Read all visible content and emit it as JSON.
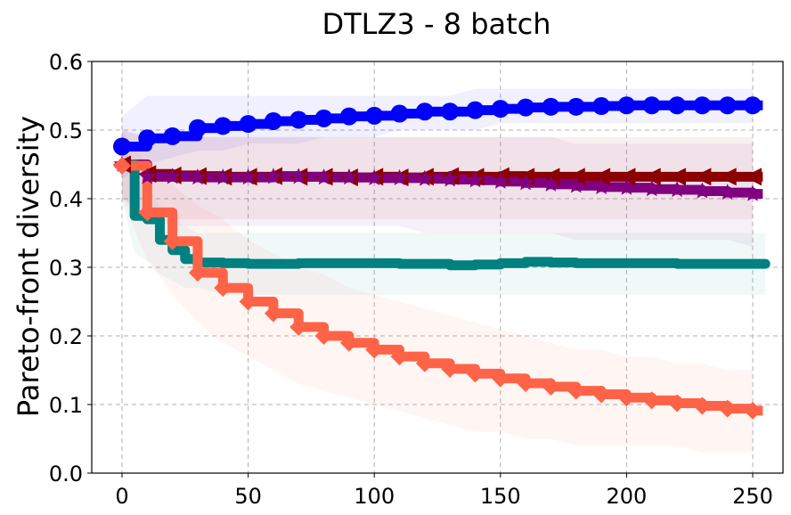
{
  "chart_data": {
    "type": "line",
    "title": "DTLZ3 - 8 batch",
    "xlabel": "",
    "ylabel": "Pareto-front diversity",
    "xlim": [
      -12,
      262
    ],
    "ylim": [
      0.0,
      0.6
    ],
    "xticks": [
      0,
      50,
      100,
      150,
      200,
      250
    ],
    "yticks": [
      0.0,
      0.1,
      0.2,
      0.3,
      0.4,
      0.5,
      0.6
    ],
    "ytick_labels": [
      "0.0",
      "0.1",
      "0.2",
      "0.3",
      "0.4",
      "0.5",
      "0.6"
    ],
    "grid": true,
    "series": [
      {
        "name": "blue",
        "color": "#0000ff",
        "marker": "circle",
        "x": [
          0,
          10,
          20,
          30,
          40,
          50,
          60,
          70,
          80,
          90,
          100,
          110,
          120,
          130,
          140,
          150,
          160,
          170,
          180,
          190,
          200,
          210,
          220,
          230,
          240,
          250
        ],
        "mean": [
          0.476,
          0.488,
          0.491,
          0.503,
          0.506,
          0.509,
          0.513,
          0.515,
          0.517,
          0.52,
          0.521,
          0.524,
          0.527,
          0.527,
          0.529,
          0.531,
          0.533,
          0.534,
          0.534,
          0.535,
          0.536,
          0.536,
          0.536,
          0.536,
          0.536,
          0.536
        ],
        "lower": [
          0.43,
          0.45,
          0.46,
          0.47,
          0.47,
          0.48,
          0.48,
          0.48,
          0.49,
          0.49,
          0.49,
          0.5,
          0.5,
          0.5,
          0.5,
          0.51,
          0.51,
          0.51,
          0.51,
          0.51,
          0.51,
          0.51,
          0.51,
          0.51,
          0.51,
          0.51
        ],
        "upper": [
          0.52,
          0.55,
          0.55,
          0.55,
          0.55,
          0.55,
          0.55,
          0.55,
          0.55,
          0.55,
          0.55,
          0.55,
          0.55,
          0.55,
          0.56,
          0.56,
          0.56,
          0.56,
          0.56,
          0.56,
          0.56,
          0.56,
          0.56,
          0.56,
          0.56,
          0.56
        ]
      },
      {
        "name": "dark red",
        "color": "#8b0000",
        "marker": "triangle-left",
        "x": [
          0,
          10,
          20,
          30,
          40,
          50,
          60,
          70,
          80,
          90,
          100,
          110,
          120,
          130,
          140,
          150,
          160,
          170,
          180,
          190,
          200,
          210,
          220,
          230,
          240,
          250
        ],
        "mean": [
          0.45,
          0.436,
          0.434,
          0.433,
          0.432,
          0.432,
          0.433,
          0.432,
          0.432,
          0.431,
          0.432,
          0.431,
          0.432,
          0.433,
          0.432,
          0.433,
          0.432,
          0.432,
          0.432,
          0.432,
          0.432,
          0.432,
          0.432,
          0.432,
          0.432,
          0.432
        ],
        "lower": [
          0.4,
          0.38,
          0.37,
          0.37,
          0.37,
          0.37,
          0.37,
          0.37,
          0.37,
          0.37,
          0.37,
          0.37,
          0.37,
          0.37,
          0.37,
          0.37,
          0.37,
          0.37,
          0.37,
          0.37,
          0.37,
          0.37,
          0.37,
          0.37,
          0.37,
          0.37
        ],
        "upper": [
          0.5,
          0.49,
          0.49,
          0.49,
          0.49,
          0.49,
          0.49,
          0.49,
          0.49,
          0.49,
          0.49,
          0.49,
          0.49,
          0.49,
          0.49,
          0.49,
          0.49,
          0.49,
          0.49,
          0.49,
          0.49,
          0.49,
          0.49,
          0.49,
          0.49,
          0.49
        ]
      },
      {
        "name": "purple",
        "color": "#800080",
        "marker": "star",
        "x": [
          0,
          10,
          20,
          30,
          40,
          50,
          60,
          70,
          80,
          90,
          100,
          110,
          120,
          130,
          140,
          150,
          160,
          170,
          180,
          190,
          200,
          210,
          220,
          230,
          240,
          250
        ],
        "mean": [
          0.45,
          0.432,
          0.432,
          0.431,
          0.431,
          0.431,
          0.432,
          0.432,
          0.431,
          0.431,
          0.43,
          0.43,
          0.429,
          0.428,
          0.427,
          0.425,
          0.423,
          0.421,
          0.419,
          0.417,
          0.416,
          0.414,
          0.413,
          0.411,
          0.409,
          0.407
        ],
        "lower": [
          0.4,
          0.37,
          0.36,
          0.36,
          0.36,
          0.36,
          0.36,
          0.36,
          0.36,
          0.36,
          0.36,
          0.36,
          0.35,
          0.35,
          0.35,
          0.35,
          0.35,
          0.35,
          0.34,
          0.34,
          0.34,
          0.34,
          0.34,
          0.34,
          0.34,
          0.33
        ],
        "upper": [
          0.5,
          0.49,
          0.49,
          0.49,
          0.49,
          0.49,
          0.49,
          0.49,
          0.49,
          0.49,
          0.49,
          0.49,
          0.49,
          0.49,
          0.49,
          0.49,
          0.49,
          0.49,
          0.48,
          0.48,
          0.48,
          0.48,
          0.48,
          0.48,
          0.48,
          0.48
        ]
      },
      {
        "name": "teal",
        "color": "#008080",
        "marker": "none",
        "x": [
          0,
          5,
          10,
          15,
          20,
          25,
          30,
          40,
          50,
          60,
          70,
          80,
          90,
          100,
          110,
          120,
          130,
          140,
          150,
          160,
          170,
          180,
          190,
          200,
          210,
          220,
          230,
          240,
          250,
          255
        ],
        "mean": [
          0.45,
          0.375,
          0.37,
          0.34,
          0.325,
          0.312,
          0.307,
          0.306,
          0.305,
          0.305,
          0.306,
          0.306,
          0.306,
          0.306,
          0.305,
          0.305,
          0.303,
          0.304,
          0.306,
          0.308,
          0.307,
          0.306,
          0.306,
          0.306,
          0.306,
          0.305,
          0.305,
          0.305,
          0.305,
          0.305
        ],
        "lower": [
          0.4,
          0.32,
          0.31,
          0.29,
          0.28,
          0.27,
          0.27,
          0.26,
          0.26,
          0.26,
          0.26,
          0.26,
          0.26,
          0.26,
          0.26,
          0.26,
          0.26,
          0.26,
          0.26,
          0.26,
          0.26,
          0.26,
          0.26,
          0.26,
          0.26,
          0.26,
          0.26,
          0.26,
          0.26,
          0.26
        ],
        "upper": [
          0.5,
          0.43,
          0.42,
          0.39,
          0.37,
          0.36,
          0.35,
          0.35,
          0.35,
          0.35,
          0.35,
          0.35,
          0.35,
          0.35,
          0.35,
          0.35,
          0.35,
          0.35,
          0.35,
          0.35,
          0.35,
          0.35,
          0.35,
          0.35,
          0.35,
          0.35,
          0.35,
          0.35,
          0.35,
          0.35
        ]
      },
      {
        "name": "tomato",
        "color": "#ff6347",
        "marker": "diamond",
        "x": [
          0,
          10,
          20,
          30,
          40,
          50,
          60,
          70,
          80,
          90,
          100,
          110,
          120,
          130,
          140,
          150,
          160,
          170,
          180,
          190,
          200,
          210,
          220,
          230,
          240,
          250
        ],
        "mean": [
          0.448,
          0.38,
          0.338,
          0.292,
          0.27,
          0.25,
          0.233,
          0.213,
          0.2,
          0.19,
          0.18,
          0.17,
          0.16,
          0.152,
          0.145,
          0.138,
          0.131,
          0.126,
          0.12,
          0.115,
          0.11,
          0.106,
          0.102,
          0.098,
          0.094,
          0.091
        ],
        "lower": [
          0.4,
          0.31,
          0.26,
          0.22,
          0.19,
          0.17,
          0.15,
          0.13,
          0.12,
          0.11,
          0.1,
          0.09,
          0.08,
          0.07,
          0.06,
          0.06,
          0.05,
          0.05,
          0.04,
          0.04,
          0.04,
          0.04,
          0.04,
          0.03,
          0.03,
          0.03
        ],
        "upper": [
          0.5,
          0.45,
          0.42,
          0.39,
          0.37,
          0.34,
          0.32,
          0.3,
          0.29,
          0.27,
          0.26,
          0.25,
          0.24,
          0.23,
          0.22,
          0.21,
          0.2,
          0.19,
          0.18,
          0.18,
          0.17,
          0.17,
          0.16,
          0.16,
          0.15,
          0.15
        ]
      }
    ]
  }
}
